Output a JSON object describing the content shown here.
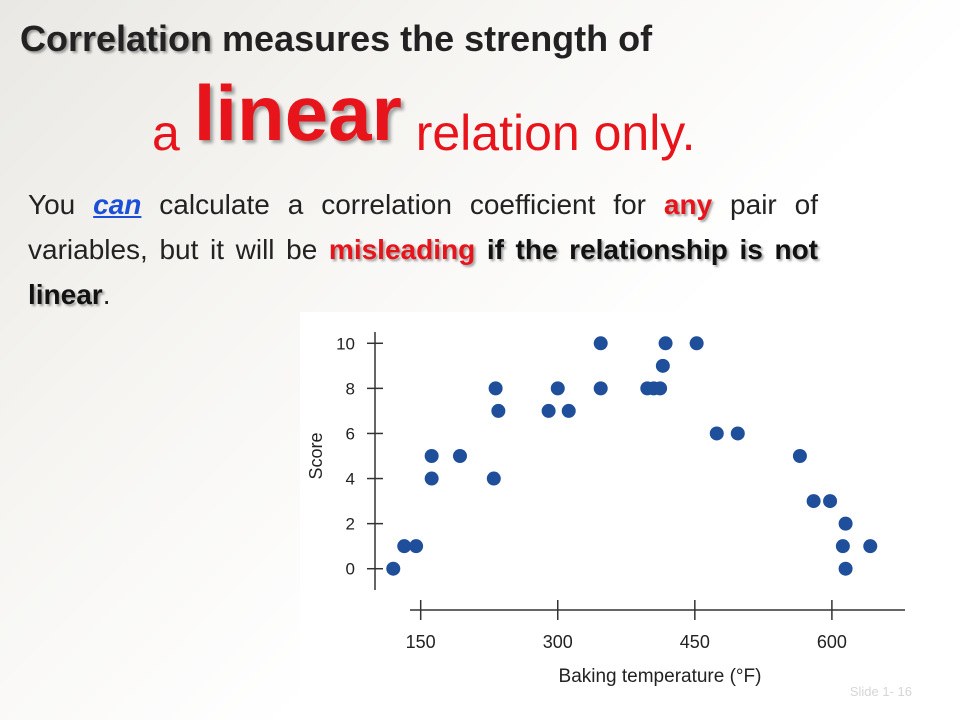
{
  "title": {
    "line1_keyword": "Correlation",
    "line1_rest": " measures the strength of",
    "line2_pre": "a ",
    "line2_big": "linear",
    "line2_post": " relation only."
  },
  "body": {
    "t1": "You ",
    "t2": "can",
    "t3": " calculate a correlation coefficient for ",
    "t4": "any",
    "t5": " pair of variables, but it will be ",
    "t6": "misleading",
    "t7": " if the relationship is not linear",
    "t8": "."
  },
  "slide_number": "Slide 1- 16",
  "colors": {
    "point": "#1f4e9a",
    "emphasis": "#e8141b",
    "link": "#1a4fd8"
  },
  "chart_data": {
    "type": "scatter",
    "title": "",
    "xlabel": "Baking temperature (°F)",
    "ylabel": "Score",
    "xlim": [
      100,
      680
    ],
    "ylim": [
      -0.5,
      10.5
    ],
    "x_ticks": [
      150,
      300,
      450,
      600
    ],
    "y_ticks": [
      0,
      2,
      4,
      6,
      8,
      10
    ],
    "grid": false,
    "points": [
      {
        "x": 120,
        "y": 0
      },
      {
        "x": 132,
        "y": 1
      },
      {
        "x": 145,
        "y": 1
      },
      {
        "x": 162,
        "y": 4
      },
      {
        "x": 162,
        "y": 5
      },
      {
        "x": 193,
        "y": 5
      },
      {
        "x": 230,
        "y": 4
      },
      {
        "x": 232,
        "y": 8
      },
      {
        "x": 235,
        "y": 7
      },
      {
        "x": 290,
        "y": 7
      },
      {
        "x": 300,
        "y": 8
      },
      {
        "x": 312,
        "y": 7
      },
      {
        "x": 347,
        "y": 10
      },
      {
        "x": 347,
        "y": 8
      },
      {
        "x": 398,
        "y": 8
      },
      {
        "x": 405,
        "y": 8
      },
      {
        "x": 412,
        "y": 8
      },
      {
        "x": 415,
        "y": 9
      },
      {
        "x": 418,
        "y": 10
      },
      {
        "x": 452,
        "y": 10
      },
      {
        "x": 474,
        "y": 6
      },
      {
        "x": 497,
        "y": 6
      },
      {
        "x": 565,
        "y": 5
      },
      {
        "x": 580,
        "y": 3
      },
      {
        "x": 598,
        "y": 3
      },
      {
        "x": 612,
        "y": 1
      },
      {
        "x": 615,
        "y": 2
      },
      {
        "x": 615,
        "y": 0
      },
      {
        "x": 642,
        "y": 1
      }
    ]
  }
}
